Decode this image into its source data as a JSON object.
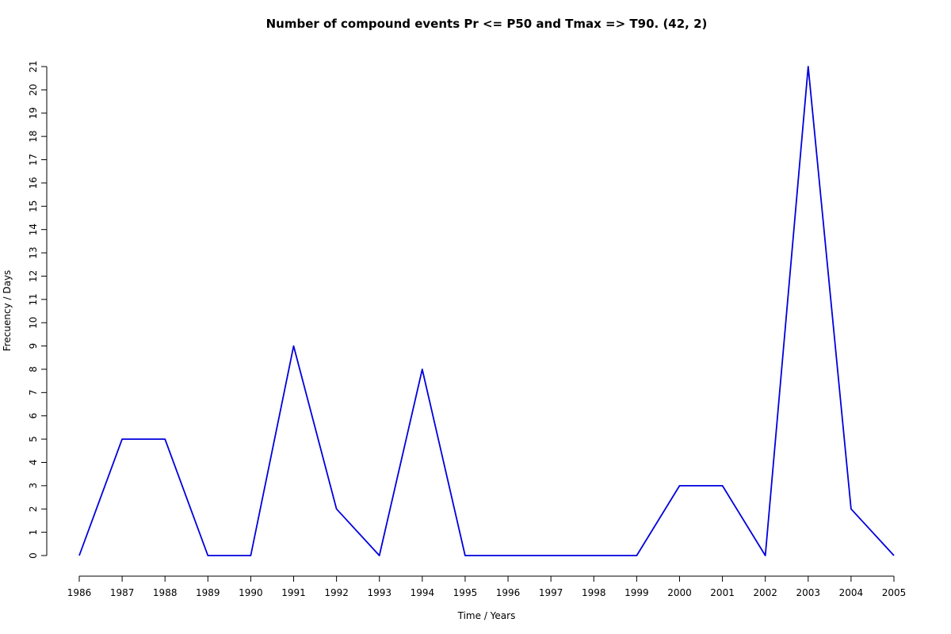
{
  "chart_data": {
    "type": "line",
    "title": "Number of compound events Pr <= P50 and Tmax => T90. (42, 2)",
    "xlabel": "Time / Years",
    "ylabel": "Frecuency / Days",
    "x": [
      1986,
      1987,
      1988,
      1989,
      1990,
      1991,
      1992,
      1993,
      1994,
      1995,
      1996,
      1997,
      1998,
      1999,
      2000,
      2001,
      2002,
      2003,
      2004,
      2005
    ],
    "x_tick_labels": [
      "1986",
      "1987",
      "1988",
      "1989",
      "1990",
      "1991",
      "1992",
      "1993",
      "1994",
      "1995",
      "1996",
      "1997",
      "1998",
      "1999",
      "2000",
      "2001",
      "2002",
      "2003",
      "2004",
      "2005"
    ],
    "y_tick_labels": [
      "0",
      "1",
      "2",
      "3",
      "4",
      "5",
      "6",
      "7",
      "8",
      "9",
      "10",
      "11",
      "12",
      "13",
      "14",
      "15",
      "16",
      "17",
      "18",
      "19",
      "20",
      "21"
    ],
    "series": [
      {
        "color": "#0000dd",
        "values": [
          0,
          5,
          5,
          0,
          0,
          9,
          2,
          0,
          8,
          0,
          0,
          0,
          0,
          0,
          3,
          3,
          0,
          21,
          2,
          0
        ]
      }
    ],
    "xlim": [
      1986,
      2005
    ],
    "ylim": [
      0,
      21
    ],
    "grid": false,
    "legend": "none"
  }
}
